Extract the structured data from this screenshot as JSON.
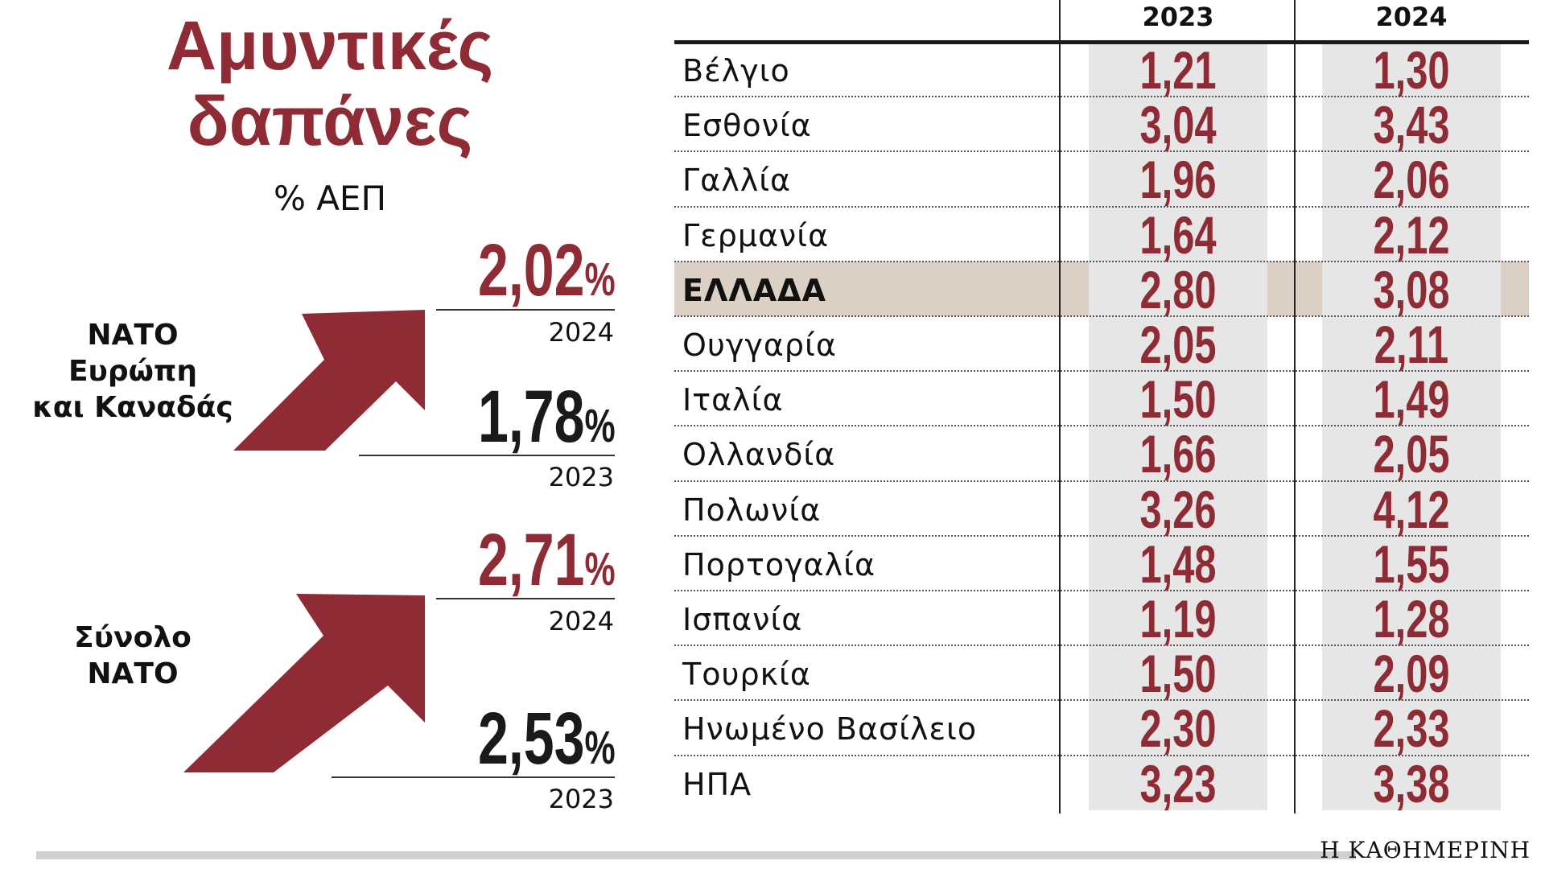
{
  "title_line1": "Αμυντικές",
  "title_line2": "δαπάνες",
  "unit": "% ΑΕΠ",
  "colors": {
    "accent": "#8f2b34",
    "band": "#e6e6e6",
    "highlight": "#dcd0c4"
  },
  "groups": [
    {
      "label_lines": [
        "ΝΑΤΟ",
        "Ευρώπη",
        "και Καναδάς"
      ],
      "value_2024": "2,02",
      "value_2023": "1,78",
      "pct": "%",
      "year_2024": "2024",
      "year_2023": "2023"
    },
    {
      "label_lines": [
        "Σύνολο",
        "ΝΑΤΟ"
      ],
      "value_2024": "2,71",
      "value_2023": "2,53",
      "pct": "%",
      "year_2024": "2024",
      "year_2023": "2023"
    }
  ],
  "chart_data": {
    "type": "table",
    "columns": [
      "2023",
      "2024"
    ],
    "rows": [
      {
        "country": "Βέλγιο",
        "v2023": "1,21",
        "v2024": "1,30"
      },
      {
        "country": "Εσθονία",
        "v2023": "3,04",
        "v2024": "3,43"
      },
      {
        "country": "Γαλλία",
        "v2023": "1,96",
        "v2024": "2,06"
      },
      {
        "country": "Γερμανία",
        "v2023": "1,64",
        "v2024": "2,12"
      },
      {
        "country": "ΕΛΛΑΔΑ",
        "v2023": "2,80",
        "v2024": "3,08",
        "highlight": true
      },
      {
        "country": "Ουγγαρία",
        "v2023": "2,05",
        "v2024": "2,11"
      },
      {
        "country": "Ιταλία",
        "v2023": "1,50",
        "v2024": "1,49"
      },
      {
        "country": "Ολλανδία",
        "v2023": "1,66",
        "v2024": "2,05"
      },
      {
        "country": "Πολωνία",
        "v2023": "3,26",
        "v2024": "4,12"
      },
      {
        "country": "Πορτογαλία",
        "v2023": "1,48",
        "v2024": "1,55"
      },
      {
        "country": "Ισπανία",
        "v2023": "1,19",
        "v2024": "1,28"
      },
      {
        "country": "Τουρκία",
        "v2023": "1,50",
        "v2024": "2,09"
      },
      {
        "country": "Ηνωμένο Βασίλειο",
        "v2023": "2,30",
        "v2024": "2,33"
      },
      {
        "country": "ΗΠΑ",
        "v2023": "3,23",
        "v2024": "3,38"
      }
    ]
  },
  "brand": "Η ΚΑΘΗΜΕΡΙΝΗ"
}
